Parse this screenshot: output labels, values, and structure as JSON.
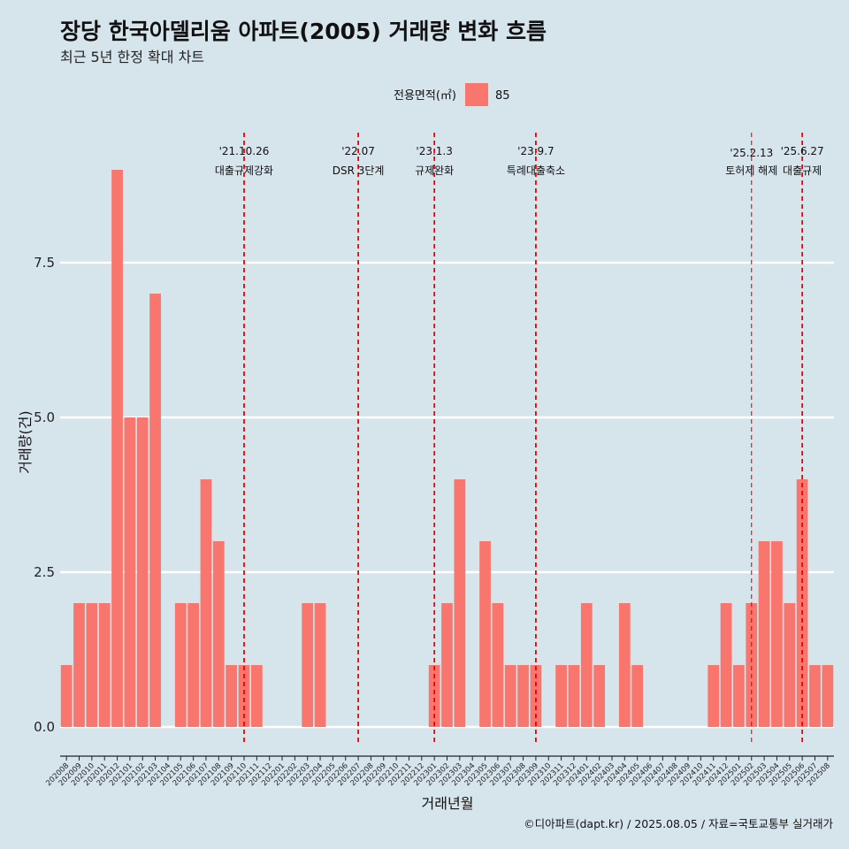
{
  "chart_data": {
    "type": "bar",
    "title": "장당 한국아델리움 아파트(2005) 거래량 변화 흐름",
    "subtitle": "최근 5년 한정 확대 차트",
    "xlabel": "거래년월",
    "ylabel": "거래량(건)",
    "caption": "©디아파트(dapt.kr) / 2025.08.05 / 자료=국토교통부 실거래가",
    "legend": {
      "title": "전용면적(㎡)",
      "position": "top",
      "entries": [
        {
          "label": "85",
          "color": "#f8766d"
        }
      ]
    },
    "grid": true,
    "ylim": [
      -0.3,
      9.6
    ],
    "yticks": [
      0.0,
      2.5,
      5.0,
      7.5
    ],
    "ytick_labels": [
      "0.0",
      "2.5",
      "5.0",
      "7.5"
    ],
    "bar_color": "#f8766d",
    "categories": [
      "202008",
      "202009",
      "202010",
      "202011",
      "202012",
      "202101",
      "202102",
      "202103",
      "202104",
      "202105",
      "202106",
      "202107",
      "202108",
      "202109",
      "202110",
      "202111",
      "202112",
      "202201",
      "202202",
      "202203",
      "202204",
      "202205",
      "202206",
      "202207",
      "202208",
      "202209",
      "202210",
      "202211",
      "202212",
      "202301",
      "202302",
      "202303",
      "202304",
      "202305",
      "202306",
      "202307",
      "202308",
      "202309",
      "202310",
      "202311",
      "202312",
      "202401",
      "202402",
      "202403",
      "202404",
      "202405",
      "202406",
      "202407",
      "202408",
      "202409",
      "202410",
      "202411",
      "202412",
      "202501",
      "202502",
      "202503",
      "202504",
      "202505",
      "202506",
      "202507",
      "202508"
    ],
    "values": [
      1,
      2,
      2,
      2,
      9,
      5,
      5,
      7,
      0,
      2,
      2,
      4,
      3,
      1,
      1,
      1,
      0,
      0,
      0,
      2,
      2,
      0,
      0,
      0,
      0,
      0,
      0,
      0,
      0,
      1,
      2,
      4,
      0,
      3,
      2,
      1,
      1,
      1,
      0,
      1,
      1,
      2,
      1,
      0,
      2,
      1,
      0,
      0,
      0,
      0,
      0,
      1,
      2,
      1,
      2,
      3,
      3,
      2,
      4,
      1,
      1
    ],
    "events": [
      {
        "date": "'21.10.26",
        "label": "대출규제강화",
        "x": 14.5,
        "style": "major"
      },
      {
        "date": "'22.07",
        "label": "DSR 3단계",
        "x": 23.5,
        "style": "major"
      },
      {
        "date": "'23.1.3",
        "label": "규제완화",
        "x": 29.5,
        "style": "major"
      },
      {
        "date": "'23.9.7",
        "label": "특례대출축소",
        "x": 37.5,
        "style": "major"
      },
      {
        "date": "'25.2.13",
        "label": "토허제 해제",
        "x": 54.5,
        "style": "minor"
      },
      {
        "date": "'25.6.27",
        "label": "대출규제",
        "x": 58.5,
        "style": "major"
      }
    ]
  }
}
